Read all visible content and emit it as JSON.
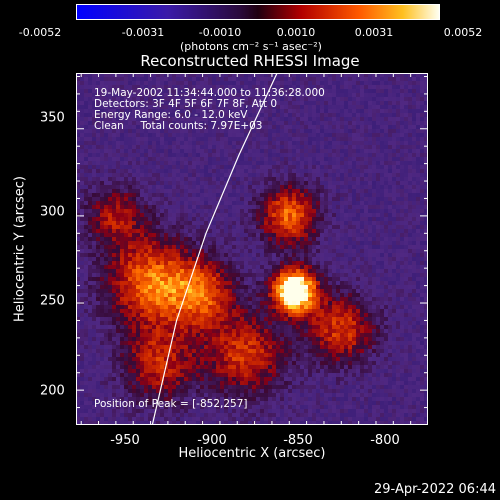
{
  "colorbar": {
    "ticks": [
      "-0.0052",
      "-0.0031",
      "-0.0010",
      "0.0010",
      "0.0031",
      "0.0052"
    ],
    "unit_label": "(photons cm⁻² s⁻¹ asec⁻²)"
  },
  "chart_data": {
    "type": "heatmap",
    "title": "Reconstructed RHESSI Image",
    "xlabel": "Heliocentric X (arcsec)",
    "ylabel": "Heliocentric Y (arcsec)",
    "xlim": [
      -978,
      -775
    ],
    "ylim": [
      180,
      382
    ],
    "xticks": [
      -950,
      -900,
      -850,
      -800
    ],
    "yticks": [
      200,
      250,
      300,
      350
    ],
    "xtick_labels": [
      "-950",
      "-900",
      "-850",
      "-800"
    ],
    "ytick_labels": [
      "200",
      "250",
      "300",
      "350"
    ],
    "color_range": [
      -0.0052,
      0.0052
    ],
    "peak": {
      "x": -852,
      "y": 257
    },
    "limb_curve": [
      [
        -934,
        180
      ],
      [
        -920,
        240
      ],
      [
        -903,
        290
      ],
      [
        -884,
        335
      ],
      [
        -862,
        382
      ]
    ],
    "sources": [
      {
        "x": -852,
        "y": 257,
        "sigma": 9,
        "amp": 1.0
      },
      {
        "x": -855,
        "y": 300,
        "sigma": 12,
        "amp": 0.55
      },
      {
        "x": -935,
        "y": 262,
        "sigma": 18,
        "amp": 0.55
      },
      {
        "x": -905,
        "y": 255,
        "sigma": 14,
        "amp": 0.45
      },
      {
        "x": -880,
        "y": 220,
        "sigma": 16,
        "amp": 0.45
      },
      {
        "x": -825,
        "y": 235,
        "sigma": 14,
        "amp": 0.45
      },
      {
        "x": -930,
        "y": 215,
        "sigma": 15,
        "amp": 0.4
      },
      {
        "x": -955,
        "y": 300,
        "sigma": 12,
        "amp": 0.35
      }
    ]
  },
  "info": {
    "time": "19-May-2002 11:34:44.000 to 11:36:28.000",
    "detectors": "Detectors: 3F 4F 5F 6F 7F 8F, Att 0",
    "energy": "Energy Range: 6.0 - 12.0 keV",
    "clean": "Clean     Total counts: 7.97E+03",
    "peak": "Position of Peak = [-852,257]"
  },
  "timestamp": "29-Apr-2022 06:44"
}
